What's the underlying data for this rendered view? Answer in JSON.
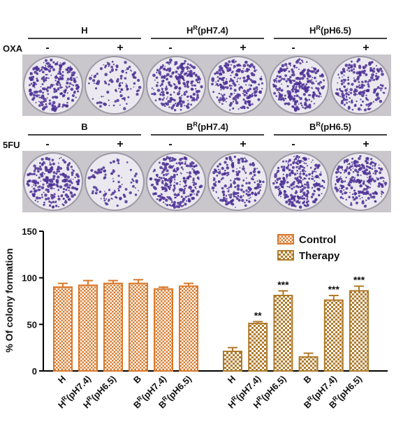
{
  "plates": [
    {
      "row_label": "OXA",
      "groups": [
        [
          "H"
        ],
        [
          "H",
          "R",
          "(pH7.4)"
        ],
        [
          "H",
          "R",
          "(pH6.5)"
        ]
      ],
      "signs": [
        "-",
        "+",
        "-",
        "+",
        "-",
        "+"
      ]
    },
    {
      "row_label": "5FU",
      "groups": [
        [
          "B"
        ],
        [
          "B",
          "R",
          "(pH7.4)"
        ],
        [
          "B",
          "R",
          "(pH6.5)"
        ]
      ],
      "signs": [
        "-",
        "+",
        "-",
        "+",
        "-",
        "+"
      ]
    }
  ],
  "chart_data": {
    "type": "bar",
    "y_label": "% Of colony formation",
    "categories": [
      [
        "H"
      ],
      [
        "H",
        "R",
        "(pH7.4)"
      ],
      [
        "H",
        "R",
        "(pH6.5)"
      ],
      [
        "B"
      ],
      [
        "B",
        "R",
        "(pH7.4)"
      ],
      [
        "B",
        "R",
        "(pH6.5)"
      ],
      [
        "H"
      ],
      [
        "H",
        "R",
        "(pH7.4)"
      ],
      [
        "H",
        "R",
        "(pH6.5)"
      ],
      [
        "B"
      ],
      [
        "B",
        "R",
        "(pH7.4)"
      ],
      [
        "B",
        "R",
        "(pH6.5)"
      ]
    ],
    "series": [
      {
        "name": "Control",
        "color": "#d9782a",
        "values": [
          90,
          92,
          94,
          94,
          88,
          91,
          null,
          null,
          null,
          null,
          null,
          null
        ],
        "errors": [
          4,
          5,
          3,
          4,
          2,
          3,
          null,
          null,
          null,
          null,
          null,
          null
        ]
      },
      {
        "name": "Therapy",
        "color": "#b07a2a",
        "values": [
          null,
          null,
          null,
          null,
          null,
          null,
          21,
          51,
          81,
          15,
          76,
          86
        ],
        "errors": [
          null,
          null,
          null,
          null,
          null,
          null,
          4,
          2,
          5,
          4,
          5,
          5
        ],
        "significance": [
          null,
          null,
          null,
          null,
          null,
          null,
          null,
          "**",
          "***",
          null,
          "***",
          "***"
        ]
      }
    ],
    "ylim": [
      0,
      150
    ],
    "yticks": [
      0,
      50,
      100,
      150
    ],
    "legend": "upper right"
  }
}
